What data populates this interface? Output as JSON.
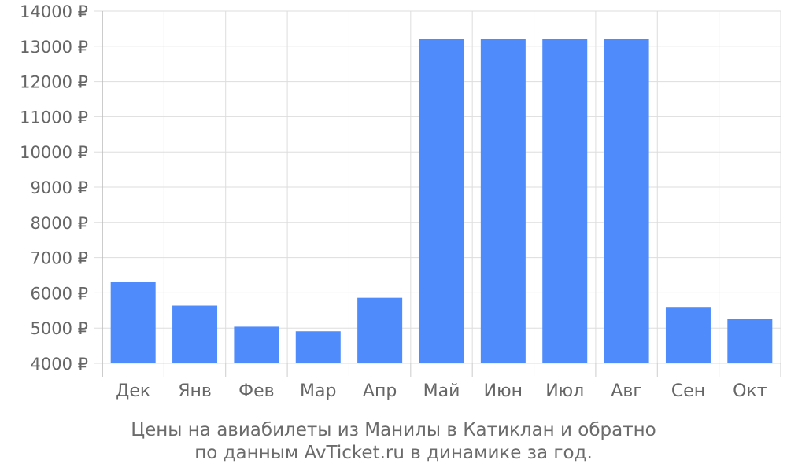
{
  "chart_data": {
    "type": "bar",
    "categories": [
      "Дек",
      "Янв",
      "Фев",
      "Мар",
      "Апр",
      "Май",
      "Июн",
      "Июл",
      "Авг",
      "Сен",
      "Окт"
    ],
    "values": [
      6300,
      5640,
      5040,
      4910,
      5860,
      13200,
      13200,
      13200,
      13200,
      5580,
      5260
    ],
    "ylim": [
      4000,
      14000
    ],
    "yticks": [
      4000,
      5000,
      6000,
      7000,
      8000,
      9000,
      10000,
      11000,
      12000,
      13000,
      14000
    ],
    "y_unit_suffix": " ₽",
    "grid": true,
    "bar_color": "#4f8bfb",
    "title": "Цены на авиабилеты из Манилы в Катиклан и обратно",
    "subtitle": "по данным AvTicket.ru в динамике за год."
  }
}
